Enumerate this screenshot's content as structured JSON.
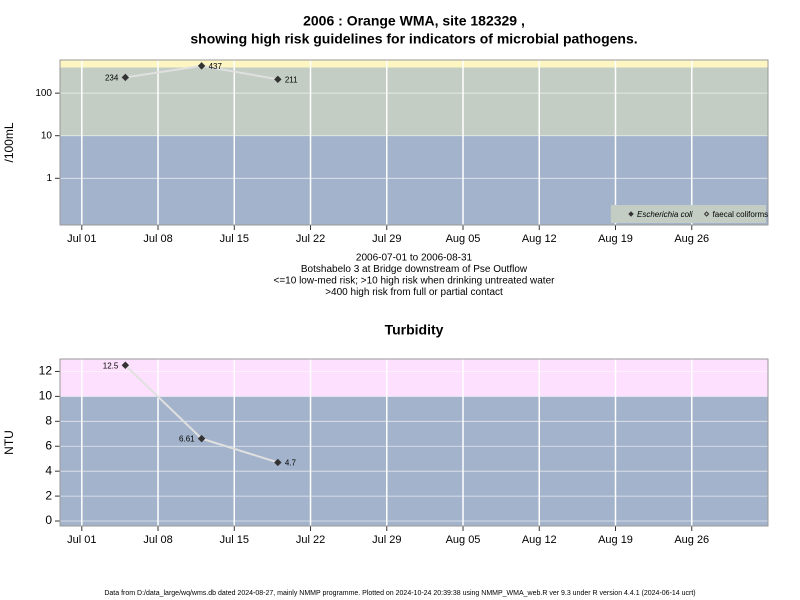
{
  "chart_data": [
    {
      "type": "line",
      "title": "2006 : Orange WMA, site 182329 ,",
      "subtitle": "showing high risk guidelines for indicators of microbial pathogens.",
      "ylabel": "/100mL",
      "log_scale": true,
      "grid": true,
      "legend": "lower right",
      "x": [
        "2006-07-05",
        "2006-07-12",
        "2006-07-19"
      ],
      "xlim": [
        "2006-06-29",
        "2006-09-02"
      ],
      "xticks": [
        {
          "value": "2006-07-01",
          "label": "Jul 01"
        },
        {
          "value": "2006-07-08",
          "label": "Jul 08"
        },
        {
          "value": "2006-07-15",
          "label": "Jul 15"
        },
        {
          "value": "2006-07-22",
          "label": "Jul 22"
        },
        {
          "value": "2006-07-29",
          "label": "Jul 29"
        },
        {
          "value": "2006-08-05",
          "label": "Aug 05"
        },
        {
          "value": "2006-08-12",
          "label": "Aug 12"
        },
        {
          "value": "2006-08-19",
          "label": "Aug 19"
        },
        {
          "value": "2006-08-26",
          "label": "Aug 26"
        }
      ],
      "ylim": [
        0.08,
        600
      ],
      "yticks": [
        1,
        10,
        100
      ],
      "thresholds": [
        10,
        400
      ],
      "band_colors": [
        "#a3b3cb",
        "#c3cdc3",
        "#fdf6c3"
      ],
      "line_color": "#e0e0e0",
      "series": [
        {
          "name": "Escherichia coli",
          "color": "#333333",
          "marker": "filled",
          "italic": true,
          "values": [
            234,
            437,
            211
          ]
        },
        {
          "name": "faecal coliforms",
          "color": "#333333",
          "marker": "open",
          "italic": false,
          "values": [
            null,
            null,
            null
          ]
        }
      ],
      "notes": [
        "2006-07-01 to 2006-08-31",
        "Botshabelo 3 at Bridge downstream of Pse Outflow",
        "<=10 low-med risk; >10 high risk when drinking untreated water",
        ">400 high risk from full or partial contact"
      ]
    },
    {
      "type": "line",
      "title": "Turbidity",
      "ylabel": "NTU",
      "log_scale": false,
      "grid": true,
      "x": [
        "2006-07-05",
        "2006-07-12",
        "2006-07-19"
      ],
      "xlim": [
        "2006-06-29",
        "2006-09-02"
      ],
      "xticks": [
        {
          "value": "2006-07-01",
          "label": "Jul 01"
        },
        {
          "value": "2006-07-08",
          "label": "Jul 08"
        },
        {
          "value": "2006-07-15",
          "label": "Jul 15"
        },
        {
          "value": "2006-07-22",
          "label": "Jul 22"
        },
        {
          "value": "2006-07-29",
          "label": "Jul 29"
        },
        {
          "value": "2006-08-05",
          "label": "Aug 05"
        },
        {
          "value": "2006-08-12",
          "label": "Aug 12"
        },
        {
          "value": "2006-08-19",
          "label": "Aug 19"
        },
        {
          "value": "2006-08-26",
          "label": "Aug 26"
        }
      ],
      "ylim": [
        -0.4,
        13
      ],
      "yticks": [
        0,
        2,
        4,
        6,
        8,
        10,
        12
      ],
      "thresholds": [
        10
      ],
      "band_colors": [
        "#a3b3cb",
        "#fde0fd"
      ],
      "line_color": "#e0e0e0",
      "series": [
        {
          "name": "Turbidity",
          "color": "#333333",
          "marker": "filled",
          "italic": false,
          "values": [
            12.5,
            6.61,
            4.7
          ]
        }
      ]
    }
  ],
  "footer": "Data from D:/data_large/wq/wms.db dated 2024-08-27, mainly NMMP programme. Plotted on 2024-10-24 20:39:38 using NMMP_WMA_web.R ver 9.3 under R version 4.4.1 (2024-06-14 ucrt)"
}
